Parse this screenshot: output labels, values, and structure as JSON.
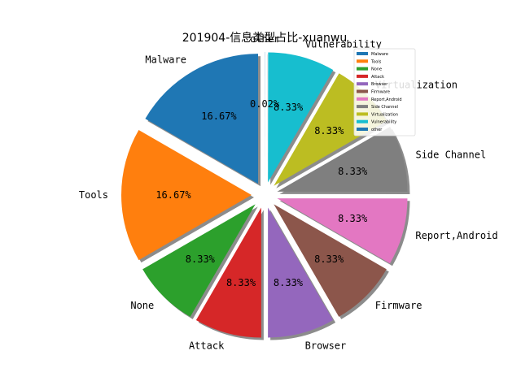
{
  "chart_data": {
    "type": "pie",
    "title": "201904-信息类型占比-xuanwu",
    "categories": [
      "Malware",
      "Tools",
      "None",
      "Attack",
      "Browser",
      "Firmware",
      "Report,Android",
      "Side Channel",
      "Virtualization",
      "Vulnerability",
      "other"
    ],
    "values": [
      16.67,
      16.67,
      8.33,
      8.33,
      8.33,
      8.33,
      8.33,
      8.33,
      8.33,
      8.33,
      0.02
    ],
    "pct_labels": [
      "16.67%",
      "16.67%",
      "8.33%",
      "8.33%",
      "8.33%",
      "8.33%",
      "8.33%",
      "8.33%",
      "8.33%",
      "8.33%",
      "0.02%"
    ],
    "colors": [
      "#1f77b4",
      "#ff7f0e",
      "#2ca02c",
      "#d62728",
      "#9467bd",
      "#8c564b",
      "#e377c2",
      "#7f7f7f",
      "#bcbd22",
      "#17becf",
      "#1f77b4"
    ],
    "start_angle_deg": 90,
    "direction": "counterclockwise",
    "shadow": true,
    "exploded": true,
    "legend": {
      "placement": "top-right",
      "entries": [
        "Malware",
        "Tools",
        "None",
        "Attack",
        "Browser",
        "Firmware",
        "Report,Android",
        "Side Channel",
        "Virtualization",
        "Vulnerability",
        "other"
      ]
    }
  }
}
